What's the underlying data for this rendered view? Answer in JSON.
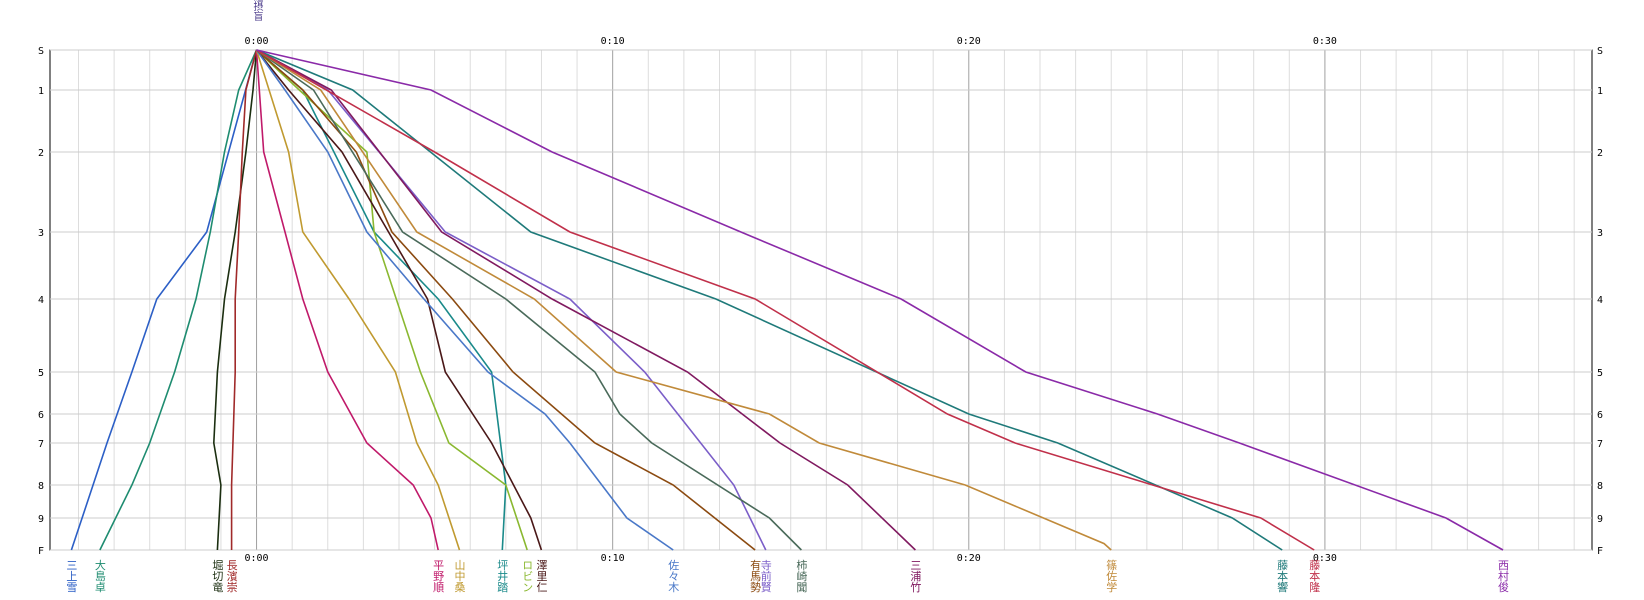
{
  "chart_data": {
    "type": "line",
    "title": "",
    "x_axis": {
      "ticks": [
        "0:00",
        "0:10",
        "0:20",
        "0:30"
      ],
      "tick_values_min": [
        0,
        10,
        20,
        30
      ],
      "range_min": [
        -5.8,
        37.5
      ]
    },
    "y_axis": {
      "ticks": [
        "S",
        "1",
        "2",
        "3",
        "4",
        "5",
        "6",
        "7",
        "8",
        "9",
        "F"
      ],
      "tick_values": [
        0,
        1,
        2,
        3,
        4,
        5,
        6,
        7,
        8,
        9,
        10
      ],
      "reversed": true
    },
    "grid": true,
    "legend_position": "bottom labels under line ends",
    "top_marker_text": "薩摂盲",
    "series": [
      {
        "name": "三上雪",
        "color": "#2c5fc6",
        "x": [
          0.0,
          -1.4,
          -2.8,
          -3.5,
          -4.2,
          -4.9,
          -5.2
        ],
        "y": [
          0,
          3,
          4,
          5,
          7,
          9,
          10
        ]
      },
      {
        "name": "大島卓",
        "color": "#1e8c70",
        "x": [
          0.0,
          -0.5,
          -0.9,
          -1.3,
          -1.7,
          -2.3,
          -3.0,
          -3.5,
          -4.4
        ],
        "y": [
          0,
          1,
          2,
          3,
          4,
          5,
          7,
          8,
          10
        ]
      },
      {
        "name": "堀切竜",
        "color": "#1b2e10",
        "x": [
          0.0,
          -0.1,
          -0.3,
          -0.6,
          -0.9,
          -1.1,
          -1.2,
          -1.0,
          -1.1
        ],
        "y": [
          0,
          1,
          2,
          3,
          4,
          5,
          7,
          8,
          10
        ]
      },
      {
        "name": "長濱崇",
        "color": "#a02a2a",
        "x": [
          0.0,
          -0.3,
          -0.4,
          -0.5,
          -0.6,
          -0.6,
          -0.7,
          -0.7
        ],
        "y": [
          0,
          1,
          2,
          3,
          4,
          5,
          8,
          10
        ]
      },
      {
        "name": "平野順",
        "color": "#c01a6a",
        "x": [
          0.0,
          0.2,
          0.8,
          1.3,
          2.0,
          3.1,
          4.4,
          4.9,
          5.1
        ],
        "y": [
          0,
          2,
          3,
          4,
          5,
          7,
          8,
          9,
          10
        ]
      },
      {
        "name": "山中桑",
        "color": "#c09a30",
        "x": [
          0.0,
          0.9,
          1.3,
          2.6,
          3.9,
          4.5,
          5.1,
          5.7
        ],
        "y": [
          0,
          2,
          3,
          4,
          5,
          7,
          8,
          10
        ]
      },
      {
        "name": "坪井踏",
        "color": "#1a8a8a",
        "x": [
          0.0,
          1.3,
          3.3,
          5.1,
          6.6,
          7.0,
          6.9
        ],
        "y": [
          0,
          1,
          3,
          4,
          5,
          8,
          10
        ]
      },
      {
        "name": "ロビン",
        "color": "#8ab830",
        "x": [
          0.0,
          1.2,
          3.1,
          3.3,
          4.6,
          5.4,
          7.0,
          7.6
        ],
        "y": [
          0,
          1,
          2,
          3,
          5,
          7,
          8,
          10
        ]
      },
      {
        "name": "澤里仁",
        "color": "#4a1818",
        "x": [
          0.0,
          0.9,
          2.4,
          4.8,
          5.3,
          6.6,
          7.7,
          8.0
        ],
        "y": [
          0,
          1,
          2,
          4,
          5,
          7,
          9,
          10
        ]
      },
      {
        "name": "佐々木",
        "color": "#4a78c8",
        "x": [
          0.0,
          0.8,
          2.0,
          3.1,
          4.7,
          6.5,
          8.1,
          8.8,
          10.4,
          11.7
        ],
        "y": [
          0,
          1,
          2,
          3,
          4,
          5,
          6,
          7,
          9,
          10
        ]
      },
      {
        "name": "有馬勢",
        "color": "#8b4a10",
        "x": [
          0.0,
          1.3,
          2.8,
          3.8,
          5.5,
          7.2,
          9.5,
          11.7,
          14.0
        ],
        "y": [
          0,
          1,
          2,
          3,
          4,
          5,
          7,
          8,
          10
        ]
      },
      {
        "name": "寺前賢",
        "color": "#7b5ec8",
        "x": [
          0.0,
          2.0,
          5.3,
          8.8,
          10.9,
          13.4,
          14.3
        ],
        "y": [
          0,
          1,
          3,
          4,
          5,
          8,
          10
        ]
      },
      {
        "name": "柿崎聞",
        "color": "#4a6a5a",
        "x": [
          0.0,
          1.6,
          4.1,
          7.0,
          9.5,
          10.2,
          11.1,
          14.4,
          15.3
        ],
        "y": [
          0,
          1,
          3,
          4,
          5,
          6,
          7,
          9,
          10
        ]
      },
      {
        "name": "三浦竹",
        "color": "#801a60",
        "x": [
          0.0,
          2.1,
          5.2,
          8.3,
          12.1,
          14.7,
          16.6,
          18.5
        ],
        "y": [
          0,
          1,
          3,
          4,
          5,
          7,
          8,
          10
        ]
      },
      {
        "name": "篠佐学",
        "color": "#c08a3a",
        "x": [
          0.0,
          1.8,
          4.5,
          7.8,
          10.1,
          14.4,
          15.8,
          19.9,
          23.8,
          24.0
        ],
        "y": [
          0,
          1,
          3,
          4,
          5,
          6,
          7,
          8,
          9.8,
          10
        ]
      },
      {
        "name": "藤本響",
        "color": "#1f7a7a",
        "x": [
          0.0,
          2.7,
          7.7,
          12.9,
          20.0,
          22.5,
          27.4,
          28.8
        ],
        "y": [
          0,
          1,
          3,
          4,
          6,
          7,
          9,
          10
        ]
      },
      {
        "name": "藤本隆",
        "color": "#c0304a",
        "x": [
          0.0,
          5.0,
          8.8,
          14.0,
          19.4,
          21.3,
          28.2,
          29.7
        ],
        "y": [
          0,
          2,
          3,
          4,
          6,
          7,
          9,
          10
        ]
      },
      {
        "name": "西村俊",
        "color": "#8a2aa8",
        "x": [
          0.0,
          4.9,
          8.3,
          13.6,
          18.1,
          21.6,
          25.3,
          27.6,
          33.4,
          35.0
        ],
        "y": [
          0,
          1,
          2,
          3,
          4,
          5,
          6,
          7,
          9,
          10
        ]
      }
    ]
  }
}
